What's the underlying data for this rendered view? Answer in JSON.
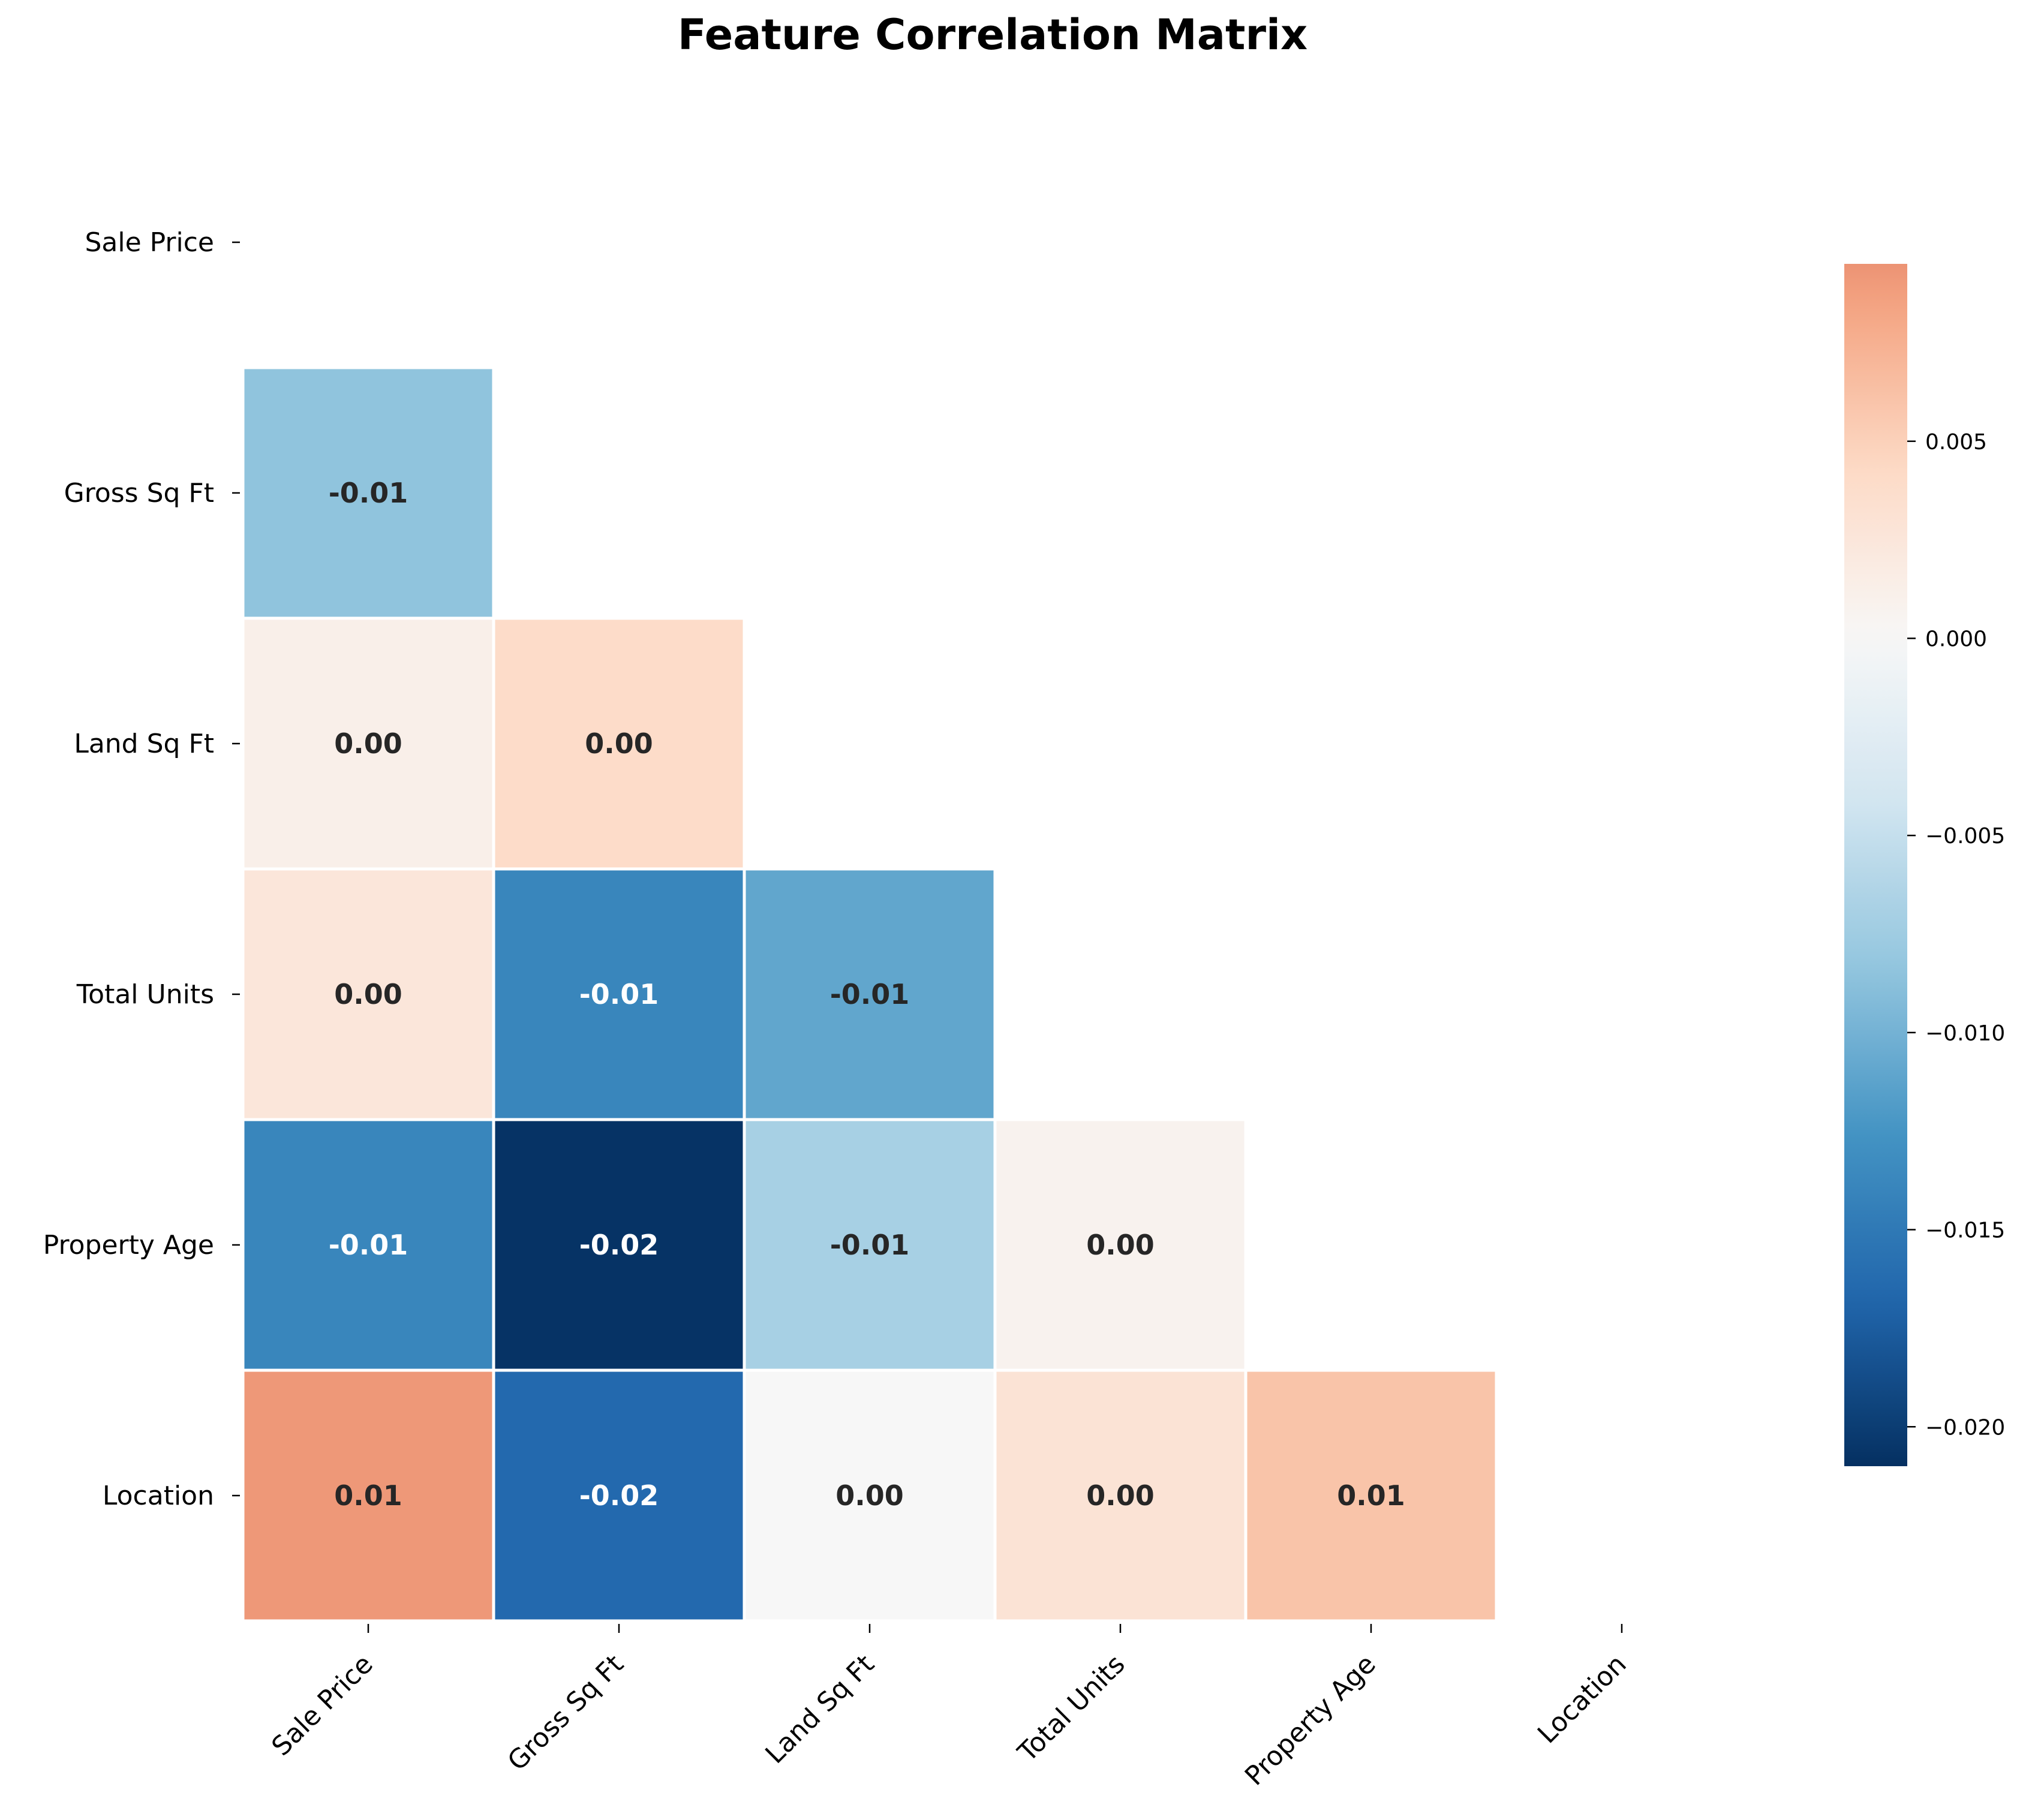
{
  "chart_data": {
    "type": "heatmap",
    "title": "Feature Correlation Matrix",
    "labels": [
      "Sale Price",
      "Gross Sq Ft",
      "Land Sq Ft",
      "Total Units",
      "Property Age",
      "Location"
    ],
    "mask": "upper-triangle-including-diagonal",
    "cells": [
      {
        "row": 1,
        "col": 0,
        "value": -0.0085,
        "label": "-0.01"
      },
      {
        "row": 2,
        "col": 0,
        "value": 0.0012,
        "label": "0.00"
      },
      {
        "row": 2,
        "col": 1,
        "value": 0.004,
        "label": "0.00"
      },
      {
        "row": 3,
        "col": 0,
        "value": 0.0025,
        "label": "0.00"
      },
      {
        "row": 3,
        "col": 1,
        "value": -0.0138,
        "label": "-0.01"
      },
      {
        "row": 3,
        "col": 2,
        "value": -0.011,
        "label": "-0.01"
      },
      {
        "row": 4,
        "col": 0,
        "value": -0.0138,
        "label": "-0.01"
      },
      {
        "row": 4,
        "col": 1,
        "value": -0.0208,
        "label": "-0.02"
      },
      {
        "row": 4,
        "col": 2,
        "value": -0.007,
        "label": "-0.01"
      },
      {
        "row": 4,
        "col": 3,
        "value": 0.0008,
        "label": "0.00"
      },
      {
        "row": 5,
        "col": 0,
        "value": 0.0092,
        "label": "0.01"
      },
      {
        "row": 5,
        "col": 1,
        "value": -0.0165,
        "label": "-0.02"
      },
      {
        "row": 5,
        "col": 2,
        "value": 0.0,
        "label": "0.00"
      },
      {
        "row": 5,
        "col": 3,
        "value": 0.003,
        "label": "0.00"
      },
      {
        "row": 5,
        "col": 4,
        "value": 0.006,
        "label": "0.01"
      }
    ],
    "colorbar": {
      "vmin": -0.021,
      "vmax": 0.0095,
      "colormap": "RdBu_r",
      "ticks": [
        0.005,
        0.0,
        -0.005,
        -0.01,
        -0.015,
        -0.02
      ],
      "tick_labels": [
        "0.005",
        "0.000",
        "−0.005",
        "−0.010",
        "−0.015",
        "−0.020"
      ]
    },
    "grid": false
  },
  "colors": {
    "dark_text": "#262626",
    "light_text": "#ffffff",
    "cell_border": "#ffffff"
  }
}
